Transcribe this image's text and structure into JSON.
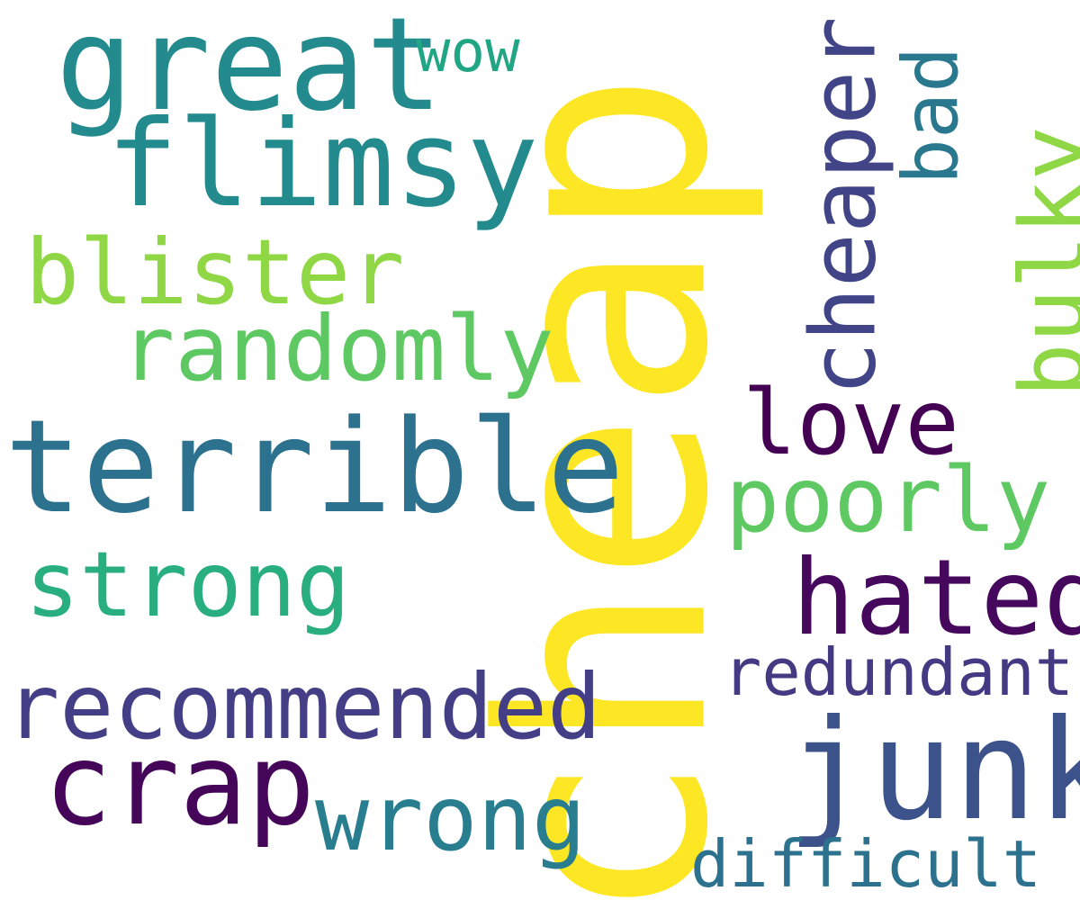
{
  "words": {
    "cheap": {
      "text": "cheap",
      "color": "#fde725"
    },
    "great": {
      "text": "great",
      "color": "#238a8d"
    },
    "wow": {
      "text": "wow",
      "color": "#21a685"
    },
    "flimsy": {
      "text": "flimsy",
      "color": "#238a8d"
    },
    "cheaper": {
      "text": "cheaper",
      "color": "#414487"
    },
    "bad": {
      "text": "bad",
      "color": "#2a788e"
    },
    "bulky": {
      "text": "bulky",
      "color": "#8fd744"
    },
    "blister": {
      "text": "blister",
      "color": "#8fd744"
    },
    "randomly": {
      "text": "randomly",
      "color": "#5ec962"
    },
    "love": {
      "text": "love",
      "color": "#440154"
    },
    "terrible": {
      "text": "terrible",
      "color": "#2c718e"
    },
    "poorly": {
      "text": "poorly",
      "color": "#5ec962"
    },
    "strong": {
      "text": "strong",
      "color": "#29af7f"
    },
    "hated": {
      "text": "hated",
      "color": "#46085c"
    },
    "redundant": {
      "text": "redundant",
      "color": "#443a83"
    },
    "recommended": {
      "text": "recommended",
      "color": "#433e85"
    },
    "crap": {
      "text": "crap",
      "color": "#450559"
    },
    "junk": {
      "text": "junk",
      "color": "#3b528b"
    },
    "wrong": {
      "text": "wrong",
      "color": "#287d8e"
    },
    "difficult": {
      "text": "difficult",
      "color": "#2c728e"
    }
  }
}
